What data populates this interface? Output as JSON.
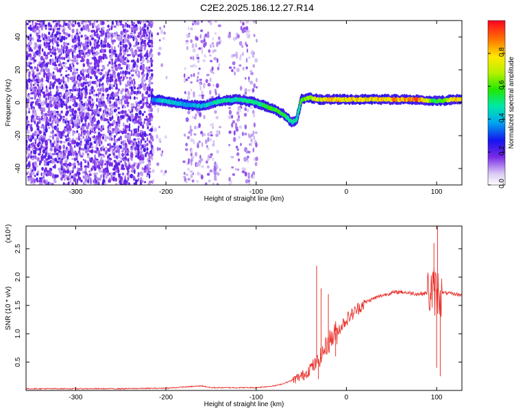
{
  "title": "C2E2.2025.186.12.27.R14",
  "chart_data": [
    {
      "type": "heatmap",
      "xlabel": "Height of straight line (km)",
      "ylabel": "Frequency (Hz)",
      "xlim": [
        -355,
        128
      ],
      "ylim": [
        -50,
        50
      ],
      "xticks": [
        -300,
        -200,
        -100,
        0,
        100
      ],
      "xtick_labels": [
        "-300",
        "-200",
        "-100",
        "0",
        "100"
      ],
      "yticks": [
        -40,
        -20,
        0,
        20,
        40
      ],
      "ytick_labels": [
        "-40",
        "-20",
        "0",
        "20",
        "40"
      ],
      "colorbar": {
        "label": "Normalized spectral amplitude",
        "range": [
          0,
          1
        ],
        "ticks": [
          0.0,
          0.2,
          0.4,
          0.6,
          0.8
        ],
        "tick_labels": [
          "0.0",
          "0.2",
          "0.4",
          "0.6",
          "0.8"
        ]
      },
      "signal_track": {
        "x": [
          -215,
          -200,
          -180,
          -160,
          -140,
          -120,
          -100,
          -90,
          -80,
          -70,
          -60,
          -55,
          -50,
          -40,
          -30,
          -20,
          0,
          20,
          40,
          60,
          80,
          100,
          120,
          128
        ],
        "frequency": [
          2,
          1,
          -1,
          -2,
          1,
          2,
          0,
          -2,
          -4,
          -7,
          -12,
          -10,
          2,
          3,
          2,
          2,
          2,
          2,
          2,
          2,
          2,
          1,
          2,
          2
        ],
        "amplitude": [
          0.35,
          0.45,
          0.4,
          0.42,
          0.5,
          0.48,
          0.5,
          0.55,
          0.6,
          0.55,
          0.5,
          0.5,
          0.6,
          0.7,
          0.75,
          0.8,
          0.8,
          0.78,
          0.8,
          0.85,
          0.9,
          0.55,
          0.82,
          0.8
        ]
      },
      "noise_regions": [
        {
          "x_range": [
            -355,
            -215
          ],
          "intensity": "high"
        },
        {
          "x_range": [
            -215,
            -200
          ],
          "intensity": "low"
        },
        {
          "x_range": [
            -180,
            -140
          ],
          "intensity": "medium"
        },
        {
          "x_range": [
            -130,
            -100
          ],
          "intensity": "medium"
        }
      ]
    },
    {
      "type": "line",
      "xlabel": "Height of straight line (km)",
      "ylabel": "SNR (10 * v/v)",
      "y_multiplier": "(x10⁴)",
      "xlim": [
        -355,
        128
      ],
      "ylim": [
        0,
        2.9
      ],
      "xticks": [
        -300,
        -200,
        -100,
        0,
        100
      ],
      "xtick_labels": [
        "-300",
        "-200",
        "-100",
        "0",
        "100"
      ],
      "yticks": [
        0.5,
        1.0,
        1.5,
        2.0,
        2.5
      ],
      "ytick_labels": [
        "0.5",
        "1.0",
        "1.5",
        "2.0",
        "2.5"
      ],
      "series_color": "#e8302a",
      "x": [
        -355,
        -300,
        -250,
        -200,
        -180,
        -160,
        -150,
        -120,
        -100,
        -80,
        -70,
        -60,
        -50,
        -45,
        -40,
        -35,
        -30,
        -25,
        -20,
        -15,
        -10,
        -5,
        0,
        10,
        20,
        30,
        40,
        50,
        60,
        70,
        80,
        90,
        95,
        100,
        103,
        105,
        110,
        120,
        128
      ],
      "values": [
        0.03,
        0.03,
        0.03,
        0.04,
        0.06,
        0.08,
        0.05,
        0.05,
        0.05,
        0.08,
        0.12,
        0.18,
        0.25,
        0.3,
        0.4,
        0.45,
        0.55,
        0.7,
        0.85,
        0.95,
        1.05,
        1.15,
        1.25,
        1.4,
        1.55,
        1.62,
        1.68,
        1.72,
        1.74,
        1.72,
        1.7,
        1.72,
        1.75,
        1.75,
        1.72,
        1.73,
        1.72,
        1.7,
        1.68
      ],
      "spikes": [
        {
          "x": -33,
          "value": 2.2
        },
        {
          "x": -31,
          "value": 0.2
        },
        {
          "x": -28,
          "value": 1.8
        },
        {
          "x": -20,
          "value": 1.7
        },
        {
          "x": -12,
          "value": 0.6
        },
        {
          "x": 97,
          "value": 2.6
        },
        {
          "x": 100,
          "value": 0.4
        },
        {
          "x": 101,
          "value": 2.9
        },
        {
          "x": 104,
          "value": 0.25
        }
      ]
    }
  ]
}
